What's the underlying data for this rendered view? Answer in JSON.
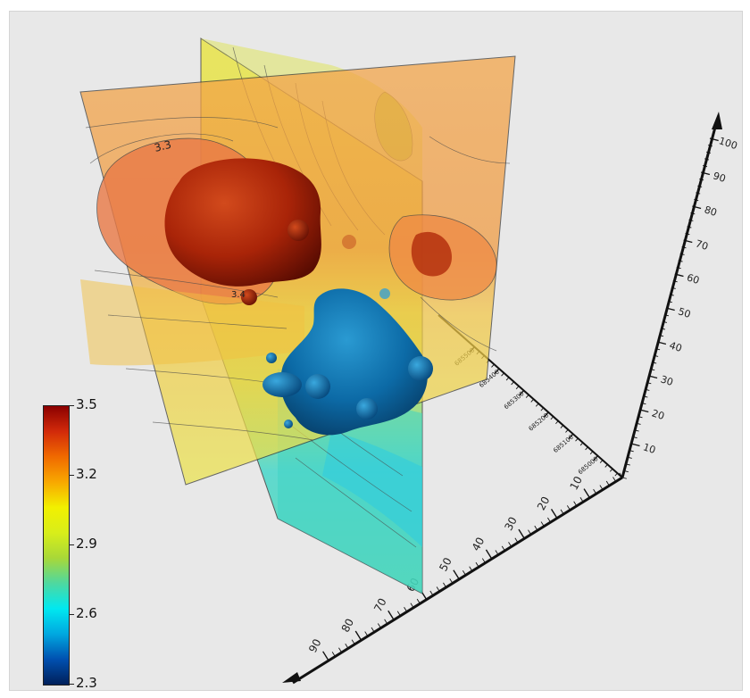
{
  "viewer": {
    "colorbar": {
      "ticks": [
        "3.5",
        "3.2",
        "2.9",
        "2.6",
        "2.3"
      ],
      "min": 2.3,
      "max": 3.5,
      "stops": [
        "#8b0000",
        "#d22a0a",
        "#f06a00",
        "#f8a800",
        "#f2f000",
        "#d8ee1a",
        "#a8d838",
        "#4ed8a0",
        "#00e8f0",
        "#00a8e0",
        "#0050b0",
        "#00205a"
      ]
    },
    "contour_labels": [
      "3.3",
      "3.4"
    ],
    "axis_primary": {
      "ticks": [
        "10",
        "20",
        "30",
        "40",
        "50",
        "60",
        "70",
        "80",
        "90"
      ]
    },
    "axis_vertical": {
      "ticks": [
        "10",
        "20",
        "30",
        "40",
        "50",
        "60",
        "70",
        "80",
        "90",
        "100"
      ]
    },
    "axis_depth": {
      "ticks": [
        "685000",
        "685100",
        "685200",
        "685300",
        "685400",
        "685500"
      ]
    },
    "colors": {
      "background": "#e8e8e8",
      "high_body": "#b52a0c",
      "low_body": "#0f6ea8"
    }
  }
}
